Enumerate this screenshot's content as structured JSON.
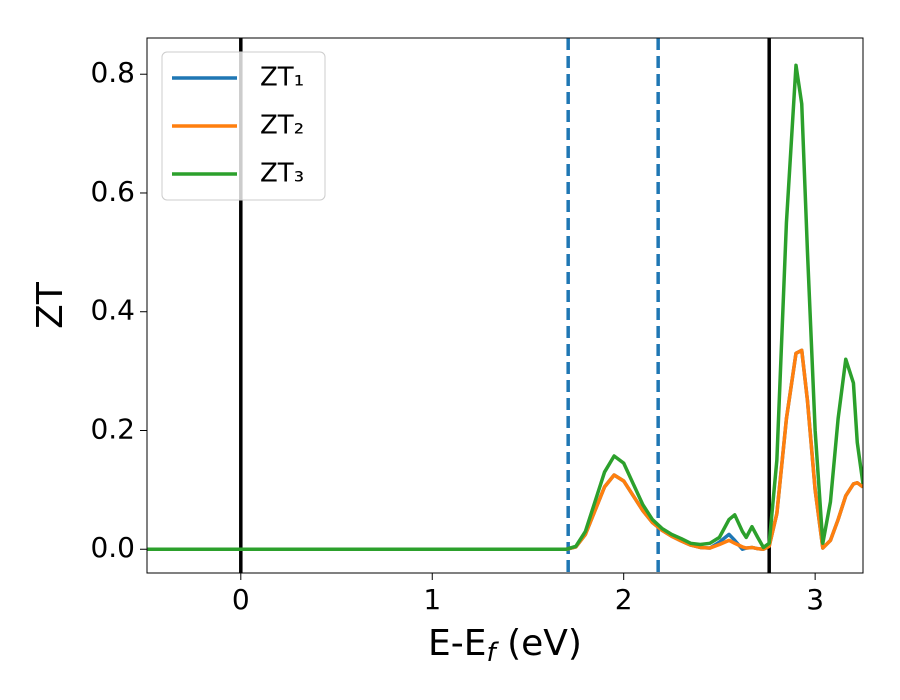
{
  "chart_data": {
    "type": "line",
    "xlabel": "E-Ef (eV)",
    "ylabel": "ZT",
    "x": [
      -0.49,
      1.7,
      1.75,
      1.8,
      1.85,
      1.9,
      1.95,
      2.0,
      2.05,
      2.1,
      2.15,
      2.2,
      2.25,
      2.3,
      2.35,
      2.4,
      2.45,
      2.5,
      2.55,
      2.58,
      2.62,
      2.64,
      2.67,
      2.7,
      2.73,
      2.76,
      2.8,
      2.85,
      2.9,
      2.93,
      2.96,
      3.0,
      3.04,
      3.08,
      3.12,
      3.16,
      3.2,
      3.22,
      3.25
    ],
    "series": [
      {
        "name": "ZT₁",
        "color": "#1f77b4",
        "values": [
          0,
          0,
          0.004,
          0.025,
          0.065,
          0.105,
          0.125,
          0.115,
          0.09,
          0.065,
          0.045,
          0.032,
          0.022,
          0.014,
          0.007,
          0.003,
          0.002,
          0.012,
          0.025,
          0.015,
          0.0,
          0.002,
          0.003,
          0.001,
          0,
          0.005,
          0.06,
          0.22,
          0.33,
          0.335,
          0.25,
          0.1,
          0.002,
          0.015,
          0.05,
          0.09,
          0.11,
          0.112,
          0.105
        ]
      },
      {
        "name": "ZT₂",
        "color": "#ff7f0e",
        "values": [
          0,
          0,
          0.004,
          0.025,
          0.065,
          0.105,
          0.125,
          0.115,
          0.09,
          0.065,
          0.045,
          0.032,
          0.022,
          0.014,
          0.007,
          0.003,
          0.002,
          0.008,
          0.015,
          0.01,
          0.004,
          0.002,
          0.003,
          0.001,
          0,
          0.005,
          0.06,
          0.22,
          0.33,
          0.335,
          0.25,
          0.1,
          0.002,
          0.015,
          0.05,
          0.09,
          0.11,
          0.112,
          0.105
        ]
      },
      {
        "name": "ZT₃",
        "color": "#2ca02c",
        "values": [
          0,
          0,
          0.005,
          0.03,
          0.08,
          0.13,
          0.157,
          0.145,
          0.11,
          0.075,
          0.05,
          0.035,
          0.025,
          0.018,
          0.01,
          0.008,
          0.01,
          0.02,
          0.05,
          0.058,
          0.03,
          0.02,
          0.038,
          0.02,
          0.003,
          0.01,
          0.15,
          0.55,
          0.815,
          0.75,
          0.5,
          0.2,
          0.01,
          0.08,
          0.22,
          0.32,
          0.28,
          0.18,
          0.11
        ]
      }
    ],
    "vlines": [
      {
        "x": 0,
        "color": "#000000",
        "style": "solid"
      },
      {
        "x": 1.71,
        "color": "#1f77b4",
        "style": "dashed"
      },
      {
        "x": 2.18,
        "color": "#1f77b4",
        "style": "dashed"
      },
      {
        "x": 2.76,
        "color": "#000000",
        "style": "solid"
      }
    ],
    "xlim": [
      -0.49,
      3.25
    ],
    "xticks": [
      0,
      1,
      2,
      3
    ],
    "ylim": [
      -0.04,
      0.861
    ],
    "yticks": [
      {
        "value": 0,
        "label": "0.0"
      },
      0.2,
      0.4,
      0.6,
      0.8
    ],
    "legend": "upper left",
    "grid": false
  }
}
